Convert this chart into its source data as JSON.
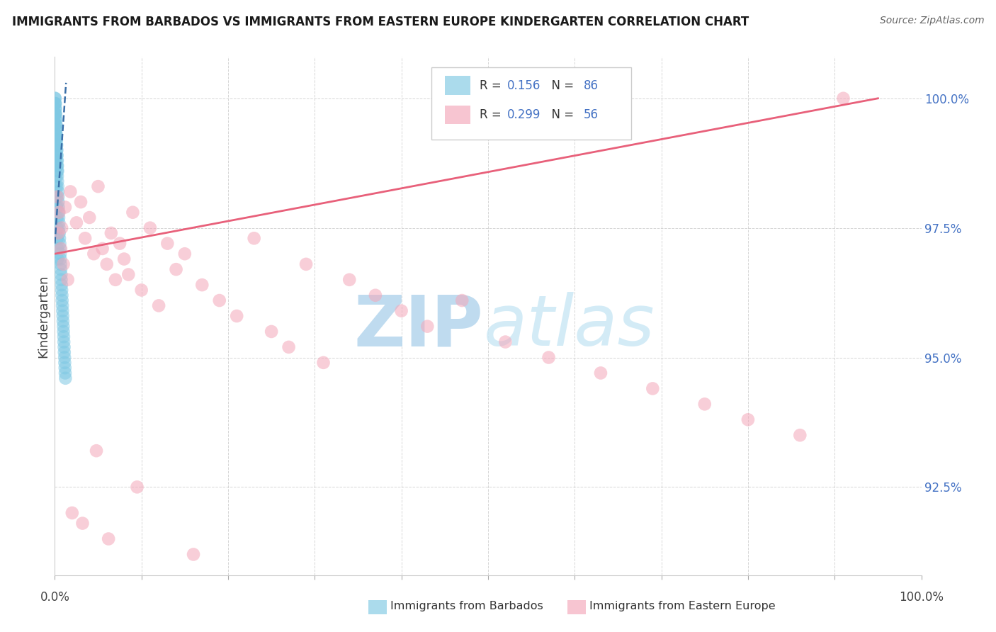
{
  "title": "IMMIGRANTS FROM BARBADOS VS IMMIGRANTS FROM EASTERN EUROPE KINDERGARTEN CORRELATION CHART",
  "source": "Source: ZipAtlas.com",
  "ylabel": "Kindergarten",
  "blue_color": "#7ec8e3",
  "pink_color": "#f4a7b9",
  "blue_line_color": "#3a6fa8",
  "pink_line_color": "#e8607a",
  "watermark_color": "#cce5f5",
  "background_color": "#ffffff",
  "grid_color": "#cccccc",
  "legend_bottom1": "Immigrants from Barbados",
  "legend_bottom2": "Immigrants from Eastern Europe",
  "R_blue": "0.156",
  "N_blue": "86",
  "R_pink": "0.299",
  "N_pink": "56",
  "yticks": [
    92.5,
    95.0,
    97.5,
    100.0
  ],
  "ytick_labels": [
    "92.5%",
    "95.0%",
    "97.5%",
    "100.0%"
  ],
  "xlim": [
    0,
    100
  ],
  "ylim": [
    90.8,
    100.8
  ],
  "blue_x": [
    0.02,
    0.03,
    0.04,
    0.05,
    0.06,
    0.07,
    0.08,
    0.09,
    0.1,
    0.11,
    0.12,
    0.13,
    0.14,
    0.15,
    0.16,
    0.17,
    0.18,
    0.19,
    0.2,
    0.21,
    0.22,
    0.23,
    0.24,
    0.25,
    0.26,
    0.27,
    0.28,
    0.29,
    0.3,
    0.31,
    0.32,
    0.33,
    0.35,
    0.37,
    0.38,
    0.4,
    0.42,
    0.44,
    0.46,
    0.48,
    0.5,
    0.52,
    0.55,
    0.58,
    0.6,
    0.63,
    0.65,
    0.68,
    0.7,
    0.73,
    0.75,
    0.78,
    0.8,
    0.83,
    0.85,
    0.88,
    0.9,
    0.93,
    0.95,
    0.98,
    1.0,
    1.03,
    1.05,
    1.08,
    1.1,
    1.13,
    1.15,
    1.18,
    1.2,
    1.23,
    0.02,
    0.04,
    0.06,
    0.08,
    0.1,
    0.12,
    0.14,
    0.16,
    0.18,
    0.2,
    0.22,
    0.24,
    0.26,
    0.28,
    0.3,
    0.32
  ],
  "blue_y": [
    100.0,
    99.9,
    100.0,
    99.8,
    99.7,
    99.9,
    99.6,
    99.8,
    99.5,
    99.7,
    99.4,
    99.6,
    99.3,
    99.5,
    99.2,
    99.4,
    99.1,
    99.3,
    99.0,
    99.2,
    98.9,
    99.1,
    98.8,
    99.0,
    98.7,
    98.9,
    98.6,
    98.8,
    98.5,
    98.7,
    98.4,
    98.6,
    98.3,
    98.2,
    98.1,
    98.0,
    97.9,
    97.8,
    97.7,
    97.6,
    97.5,
    97.4,
    97.3,
    97.2,
    97.1,
    97.0,
    96.9,
    96.8,
    96.7,
    96.6,
    96.5,
    96.4,
    96.3,
    96.2,
    96.1,
    96.0,
    95.9,
    95.8,
    95.7,
    95.6,
    95.5,
    95.4,
    95.3,
    95.2,
    95.1,
    95.0,
    94.9,
    94.8,
    94.7,
    94.6,
    99.9,
    99.7,
    99.5,
    99.3,
    99.1,
    98.9,
    98.7,
    98.5,
    98.3,
    98.1,
    97.9,
    97.7,
    97.5,
    97.3,
    97.1,
    96.9
  ],
  "pink_x": [
    0.3,
    0.5,
    0.8,
    1.2,
    1.8,
    2.5,
    3.0,
    3.5,
    4.0,
    4.5,
    5.0,
    5.5,
    6.0,
    6.5,
    7.0,
    7.5,
    8.0,
    8.5,
    9.0,
    10.0,
    11.0,
    12.0,
    13.0,
    14.0,
    15.0,
    17.0,
    19.0,
    21.0,
    23.0,
    25.0,
    27.0,
    29.0,
    31.0,
    34.0,
    37.0,
    40.0,
    43.0,
    47.0,
    52.0,
    57.0,
    63.0,
    69.0,
    75.0,
    80.0,
    86.0,
    91.0,
    0.4,
    0.7,
    1.0,
    1.5,
    2.0,
    3.2,
    4.8,
    6.2,
    9.5,
    16.0
  ],
  "pink_y": [
    98.1,
    97.8,
    97.5,
    97.9,
    98.2,
    97.6,
    98.0,
    97.3,
    97.7,
    97.0,
    98.3,
    97.1,
    96.8,
    97.4,
    96.5,
    97.2,
    96.9,
    96.6,
    97.8,
    96.3,
    97.5,
    96.0,
    97.2,
    96.7,
    97.0,
    96.4,
    96.1,
    95.8,
    97.3,
    95.5,
    95.2,
    96.8,
    94.9,
    96.5,
    96.2,
    95.9,
    95.6,
    96.1,
    95.3,
    95.0,
    94.7,
    94.4,
    94.1,
    93.8,
    93.5,
    100.0,
    97.4,
    97.1,
    96.8,
    96.5,
    92.0,
    91.8,
    93.2,
    91.5,
    92.5,
    91.2
  ]
}
